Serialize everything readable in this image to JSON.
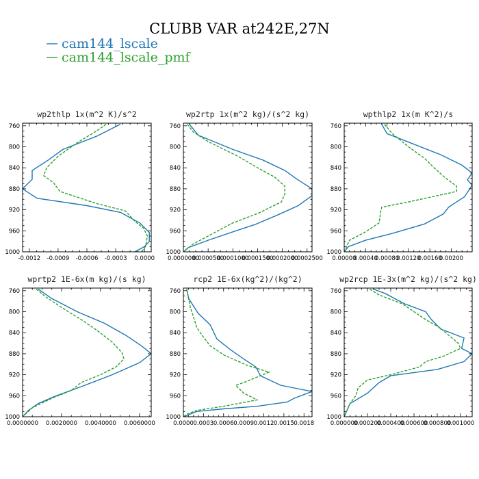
{
  "figure": {
    "title": "CLUBB VAR at242E,27N",
    "legend": [
      {
        "label": "cam144_lscale",
        "color": "#1f77b4"
      },
      {
        "label": "cam144_lscale_pmf",
        "color": "#2ca02c"
      }
    ]
  },
  "chart_data": [
    {
      "type": "line",
      "title": "wp2thlp  1x(m^2 K)/s^2",
      "xlabel": "",
      "ylabel": "",
      "xlim": [
        -0.00127,
        7e-05
      ],
      "ylim": [
        1000,
        755
      ],
      "x_ticks": [
        -0.0012,
        -0.0009,
        -0.0006,
        -0.0003,
        0.0
      ],
      "x_tick_labels": [
        "-0.0012",
        "-0.0009",
        "-0.0006",
        "-0.0003",
        "0.0000"
      ],
      "y_ticks": [
        760,
        800,
        840,
        880,
        920,
        960,
        1000
      ],
      "y_tick_labels": [
        "760",
        "800",
        "840",
        "880",
        "920",
        "960",
        "1000"
      ],
      "series": [
        {
          "color": "#1f77b4",
          "dash": "solid",
          "points": [
            [
              -0.00025,
              757
            ],
            [
              -0.0005,
              780
            ],
            [
              -0.00085,
              805
            ],
            [
              -0.001,
              825
            ],
            [
              -0.00117,
              845
            ],
            [
              -0.00117,
              862
            ],
            [
              -0.00127,
              880
            ],
            [
              -0.00112,
              898
            ],
            [
              -0.0006,
              912
            ],
            [
              -0.00025,
              925
            ],
            [
              -5e-05,
              945
            ],
            [
              5e-05,
              963
            ],
            [
              5e-05,
              980
            ],
            [
              0.0,
              990
            ],
            [
              -0.0001,
              1000
            ]
          ]
        },
        {
          "color": "#2ca02c",
          "dash": "dashed",
          "points": [
            [
              -0.0004,
              757
            ],
            [
              -0.0005,
              770
            ],
            [
              -0.0007,
              792
            ],
            [
              -0.0009,
              818
            ],
            [
              -0.00102,
              840
            ],
            [
              -0.00105,
              855
            ],
            [
              -0.00095,
              868
            ],
            [
              -0.00088,
              885
            ],
            [
              -0.0005,
              908
            ],
            [
              -0.0002,
              922
            ],
            [
              -0.0001,
              942
            ],
            [
              -1e-05,
              955
            ],
            [
              3e-05,
              970
            ],
            [
              1e-05,
              990
            ],
            [
              -3e-05,
              1000
            ]
          ]
        }
      ]
    },
    {
      "type": "line",
      "title": "wp2rtp  1x(m^2 kg)/(s^2 kg)",
      "xlabel": "",
      "ylabel": "",
      "xlim": [
        0.0,
        0.00026
      ],
      "ylim": [
        1000,
        755
      ],
      "x_ticks": [
        0.0,
        5e-05,
        0.0001,
        0.00015,
        0.0002,
        0.00025
      ],
      "x_tick_labels": [
        "0.0000000",
        "0.0000500",
        "0.0001000",
        "0.0001500",
        "0.0002000",
        "0.0002500"
      ],
      "y_ticks": [
        760,
        800,
        840,
        880,
        920,
        960,
        1000
      ],
      "y_tick_labels": [
        "760",
        "800",
        "840",
        "880",
        "920",
        "960",
        "1000"
      ],
      "series": [
        {
          "color": "#1f77b4",
          "dash": "solid",
          "points": [
            [
              1.2e-05,
              757
            ],
            [
              3e-05,
              778
            ],
            [
              0.0001,
              805
            ],
            [
              0.00016,
              825
            ],
            [
              0.000205,
              845
            ],
            [
              0.00023,
              862
            ],
            [
              0.00026,
              880
            ],
            [
              0.00026,
              893
            ],
            [
              0.000232,
              912
            ],
            [
              0.00019,
              930
            ],
            [
              0.000145,
              948
            ],
            [
              0.0001,
              962
            ],
            [
              5e-05,
              978
            ],
            [
              1e-05,
              992
            ],
            [
              0.0,
              1000
            ]
          ]
        },
        {
          "color": "#2ca02c",
          "dash": "dashed",
          "points": [
            [
              8e-06,
              757
            ],
            [
              2e-05,
              772
            ],
            [
              5e-05,
              790
            ],
            [
              0.00011,
              818
            ],
            [
              0.00015,
              840
            ],
            [
              0.000185,
              858
            ],
            [
              0.000205,
              875
            ],
            [
              0.000205,
              890
            ],
            [
              0.000198,
              905
            ],
            [
              0.00015,
              927
            ],
            [
              0.0001,
              945
            ],
            [
              6e-05,
              965
            ],
            [
              2e-05,
              985
            ],
            [
              0.0,
              1000
            ]
          ]
        }
      ]
    },
    {
      "type": "line",
      "title": "wpthlp2  1x(m K^2)/s",
      "xlabel": "",
      "ylabel": "",
      "xlim": [
        0.0,
        0.00239
      ],
      "ylim": [
        1000,
        755
      ],
      "x_ticks": [
        0.0,
        0.0004,
        0.0008,
        0.0012,
        0.0016,
        0.002
      ],
      "x_tick_labels": [
        "0.00000",
        "0.00040",
        "0.00080",
        "0.00120",
        "0.00160",
        "0.00200"
      ],
      "y_ticks": [
        760,
        800,
        840,
        880,
        920,
        960,
        1000
      ],
      "y_tick_labels": [
        "760",
        "800",
        "840",
        "880",
        "920",
        "960",
        "1000"
      ],
      "series": [
        {
          "color": "#1f77b4",
          "dash": "solid",
          "points": [
            [
              0.0007,
              757
            ],
            [
              0.0008,
              775
            ],
            [
              0.0013,
              795
            ],
            [
              0.0018,
              815
            ],
            [
              0.0022,
              835
            ],
            [
              0.00239,
              850
            ],
            [
              0.0023,
              863
            ],
            [
              0.00239,
              873
            ],
            [
              0.00225,
              895
            ],
            [
              0.00195,
              915
            ],
            [
              0.00185,
              928
            ],
            [
              0.0015,
              947
            ],
            [
              0.0009,
              965
            ],
            [
              0.0004,
              978
            ],
            [
              8e-05,
              990
            ],
            [
              0.0,
              1000
            ]
          ]
        },
        {
          "color": "#2ca02c",
          "dash": "dashed",
          "points": [
            [
              0.00075,
              757
            ],
            [
              0.0009,
              775
            ],
            [
              0.0012,
              800
            ],
            [
              0.0015,
              822
            ],
            [
              0.00168,
              840
            ],
            [
              0.0019,
              860
            ],
            [
              0.0021,
              875
            ],
            [
              0.0021,
              885
            ],
            [
              0.0012,
              905
            ],
            [
              0.0007,
              915
            ],
            [
              0.00068,
              925
            ],
            [
              0.00065,
              945
            ],
            [
              0.0004,
              962
            ],
            [
              0.0001,
              978
            ],
            [
              0.0,
              1000
            ]
          ]
        }
      ]
    },
    {
      "type": "line",
      "title": "wprtp2  1E-6x(m kg)/(s kg)",
      "xlabel": "",
      "ylabel": "",
      "xlim": [
        0.0,
        0.0066
      ],
      "ylim": [
        1000,
        755
      ],
      "x_ticks": [
        0.0,
        0.002,
        0.004,
        0.006
      ],
      "x_tick_labels": [
        "0.0000000",
        "0.0020000",
        "0.0040000",
        "0.0060000"
      ],
      "y_ticks": [
        760,
        800,
        840,
        880,
        920,
        960,
        1000
      ],
      "y_tick_labels": [
        "760",
        "800",
        "840",
        "880",
        "920",
        "960",
        "1000"
      ],
      "series": [
        {
          "color": "#1f77b4",
          "dash": "solid",
          "points": [
            [
              0.0008,
              757
            ],
            [
              0.0015,
              775
            ],
            [
              0.0028,
              800
            ],
            [
              0.0042,
              822
            ],
            [
              0.0053,
              845
            ],
            [
              0.0061,
              865
            ],
            [
              0.0066,
              880
            ],
            [
              0.006,
              897
            ],
            [
              0.0046,
              920
            ],
            [
              0.0032,
              940
            ],
            [
              0.0016,
              962
            ],
            [
              0.0008,
              975
            ],
            [
              0.0003,
              988
            ],
            [
              0.0,
              1000
            ]
          ]
        },
        {
          "color": "#2ca02c",
          "dash": "dashed",
          "points": [
            [
              0.0007,
              757
            ],
            [
              0.0012,
              772
            ],
            [
              0.002,
              792
            ],
            [
              0.003,
              815
            ],
            [
              0.0038,
              835
            ],
            [
              0.0046,
              858
            ],
            [
              0.0051,
              878
            ],
            [
              0.0052,
              890
            ],
            [
              0.0048,
              905
            ],
            [
              0.004,
              920
            ],
            [
              0.003,
              935
            ],
            [
              0.0025,
              950
            ],
            [
              0.0015,
              965
            ],
            [
              0.0005,
              983
            ],
            [
              0.0,
              1000
            ]
          ]
        }
      ]
    },
    {
      "type": "line",
      "title": "rcp2  1E-6x(kg^2)/(kg^2)",
      "xlabel": "",
      "ylabel": "",
      "xlim": [
        0.0,
        0.00192
      ],
      "ylim": [
        1000,
        755
      ],
      "x_ticks": [
        0.0,
        0.0003,
        0.0006,
        0.0009,
        0.0012,
        0.0015,
        0.0018
      ],
      "x_tick_labels": [
        "0.0000",
        "0.0003",
        "0.0006",
        "0.0009",
        "0.0012",
        "0.0015",
        "0.0018"
      ],
      "y_ticks": [
        760,
        800,
        840,
        880,
        920,
        960,
        1000
      ],
      "y_tick_labels": [
        "760",
        "800",
        "840",
        "880",
        "920",
        "960",
        "1000"
      ],
      "series": [
        {
          "color": "#1f77b4",
          "dash": "solid",
          "points": [
            [
              5e-05,
              757
            ],
            [
              8e-05,
              775
            ],
            [
              0.00022,
              803
            ],
            [
              0.0004,
              825
            ],
            [
              0.0005,
              852
            ],
            [
              0.0007,
              872
            ],
            [
              0.0009,
              890
            ],
            [
              0.00108,
              905
            ],
            [
              0.00115,
              922
            ],
            [
              0.00145,
              940
            ],
            [
              0.00192,
              952
            ],
            [
              0.00165,
              965
            ],
            [
              0.00155,
              972
            ],
            [
              0.0011,
              980
            ],
            [
              0.0006,
              985
            ],
            [
              0.0002,
              990
            ],
            [
              0.0,
              1000
            ]
          ]
        },
        {
          "color": "#2ca02c",
          "dash": "dashed",
          "points": [
            [
              5e-05,
              757
            ],
            [
              0.0001,
              790
            ],
            [
              0.00015,
              810
            ],
            [
              0.0002,
              830
            ],
            [
              0.00028,
              845
            ],
            [
              0.0004,
              865
            ],
            [
              0.0006,
              882
            ],
            [
              0.00095,
              902
            ],
            [
              0.00128,
              915
            ],
            [
              0.00115,
              922
            ],
            [
              0.0009,
              935
            ],
            [
              0.00078,
              940
            ],
            [
              0.0009,
              955
            ],
            [
              0.0011,
              968
            ],
            [
              0.0006,
              980
            ],
            [
              0.0002,
              988
            ],
            [
              5e-05,
              995
            ],
            [
              0.0,
              1000
            ]
          ]
        }
      ]
    },
    {
      "type": "line",
      "title": "wp2rcp  1E-3x(m^2 kg)/(s^2 kg)",
      "xlabel": "",
      "ylabel": "",
      "xlim": [
        0.0,
        0.0011
      ],
      "ylim": [
        1000,
        755
      ],
      "x_ticks": [
        0.0,
        0.0002,
        0.0004,
        0.0006,
        0.0008,
        0.001
      ],
      "x_tick_labels": [
        "0.000000",
        "0.000200",
        "0.000400",
        "0.000600",
        "0.000800",
        "0.001000"
      ],
      "y_ticks": [
        760,
        800,
        840,
        880,
        920,
        960,
        1000
      ],
      "y_tick_labels": [
        "760",
        "800",
        "840",
        "880",
        "920",
        "960",
        "1000"
      ],
      "series": [
        {
          "color": "#1f77b4",
          "dash": "solid",
          "points": [
            [
              0.00025,
              757
            ],
            [
              0.00035,
              765
            ],
            [
              0.00052,
              785
            ],
            [
              0.0007,
              800
            ],
            [
              0.00075,
              815
            ],
            [
              0.00083,
              833
            ],
            [
              0.00103,
              850
            ],
            [
              0.00101,
              870
            ],
            [
              0.0011,
              880
            ],
            [
              0.00103,
              895
            ],
            [
              0.0008,
              910
            ],
            [
              0.0004,
              922
            ],
            [
              0.0003,
              935
            ],
            [
              0.0002,
              955
            ],
            [
              5e-05,
              975
            ],
            [
              0.0,
              1000
            ]
          ]
        },
        {
          "color": "#2ca02c",
          "dash": "dashed",
          "points": [
            [
              0.00022,
              757
            ],
            [
              0.0003,
              768
            ],
            [
              0.0005,
              785
            ],
            [
              0.0006,
              800
            ],
            [
              0.0007,
              815
            ],
            [
              0.00082,
              830
            ],
            [
              0.0009,
              845
            ],
            [
              0.00098,
              860
            ],
            [
              0.001,
              870
            ],
            [
              0.00085,
              885
            ],
            [
              0.0007,
              895
            ],
            [
              0.00065,
              905
            ],
            [
              0.0004,
              920
            ],
            [
              0.0002,
              930
            ],
            [
              0.00012,
              945
            ],
            [
              0.0001,
              960
            ],
            [
              5e-05,
              975
            ],
            [
              0.0,
              1000
            ]
          ]
        }
      ]
    }
  ]
}
